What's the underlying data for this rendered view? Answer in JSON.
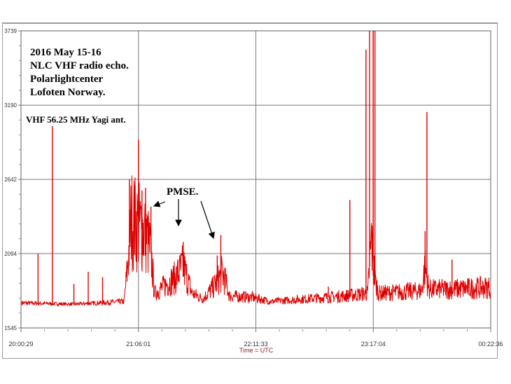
{
  "chart_data": {
    "type": "line",
    "xlabel": "Time = UTC",
    "ylabel": "",
    "x_ticks": [
      "20:00:29",
      "21:06:01",
      "22:11:33",
      "23:17:04",
      "00:22:36"
    ],
    "y_ticks": [
      1545,
      2094,
      2642,
      3190,
      3739
    ],
    "ylim": [
      1545,
      3739
    ],
    "xlim": [
      "20:00:29",
      "00:22:36"
    ],
    "grid": true,
    "line_color": "#dd0000",
    "annotations": {
      "title_lines": [
        "2016  May 15-16",
        "NLC VHF radio echo.",
        "Polarlightcenter",
        "Lofoten Norway."
      ],
      "antenna": "VHF 56.25 MHz Yagi ant.",
      "pmse": "PMSE."
    },
    "envelope": [
      [
        "20:00",
        1730
      ],
      [
        "20:30",
        1720
      ],
      [
        "20:58",
        1740
      ],
      [
        "21:00",
        2000
      ],
      [
        "21:02",
        2350
      ],
      [
        "21:06",
        2300
      ],
      [
        "21:10",
        2250
      ],
      [
        "21:13",
        2100
      ],
      [
        "21:15",
        1800
      ],
      [
        "21:20",
        1850
      ],
      [
        "21:27",
        1920
      ],
      [
        "21:31",
        2000
      ],
      [
        "21:36",
        1800
      ],
      [
        "21:42",
        1760
      ],
      [
        "21:48",
        1850
      ],
      [
        "21:53",
        1950
      ],
      [
        "21:57",
        1780
      ],
      [
        "22:10",
        1770
      ],
      [
        "22:20",
        1740
      ],
      [
        "22:40",
        1760
      ],
      [
        "23:00",
        1780
      ],
      [
        "23:14",
        1800
      ],
      [
        "23:16",
        2200
      ],
      [
        "23:18",
        1900
      ],
      [
        "23:20",
        1800
      ],
      [
        "23:44",
        1820
      ],
      [
        "23:46",
        2000
      ],
      [
        "23:48",
        1830
      ],
      [
        "00:00",
        1830
      ],
      [
        "00:22",
        1845
      ]
    ],
    "spikes": [
      [
        "20:10",
        2094
      ],
      [
        "20:18",
        3035
      ],
      [
        "20:30",
        1870
      ],
      [
        "20:38",
        1960
      ],
      [
        "20:46",
        1920
      ],
      [
        "21:01",
        2640
      ],
      [
        "21:04",
        2600
      ],
      [
        "21:06",
        2935
      ],
      [
        "21:08",
        2560
      ],
      [
        "21:10",
        2580
      ],
      [
        "21:13",
        2440
      ],
      [
        "21:28",
        2050
      ],
      [
        "21:31",
        2180
      ],
      [
        "21:50",
        2080
      ],
      [
        "21:52",
        2230
      ],
      [
        "22:52",
        1850
      ],
      [
        "23:04",
        2490
      ],
      [
        "23:13",
        3600
      ],
      [
        "23:15",
        3739
      ],
      [
        "23:17",
        3739
      ],
      [
        "23:18",
        3739
      ],
      [
        "23:46",
        2260
      ],
      [
        "23:47",
        3140
      ],
      [
        "00:01",
        2050
      ]
    ]
  }
}
